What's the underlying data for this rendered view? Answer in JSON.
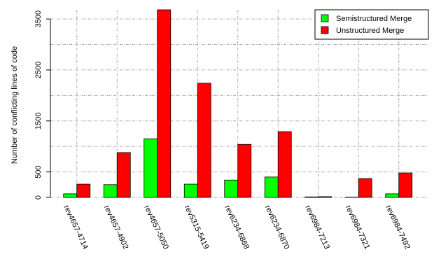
{
  "chart_data": {
    "type": "bar",
    "ylabel": "Number of conflicting lines of code",
    "categories": [
      "rev4657-4714",
      "rev4657-4902",
      "rev4657-5050",
      "rev5315-5419",
      "rev6234-6868",
      "rev6234-6870",
      "rev6984-7213",
      "rev6984-7321",
      "rev6984-7492"
    ],
    "series": [
      {
        "name": "Semistructured Merge",
        "color": "#00ff00",
        "values": [
          70,
          250,
          1150,
          260,
          340,
          400,
          10,
          5,
          70
        ]
      },
      {
        "name": "Unstructured Merge",
        "color": "#ff0000",
        "values": [
          260,
          880,
          3680,
          2240,
          1040,
          1290,
          15,
          370,
          480
        ]
      }
    ],
    "ylim": [
      0,
      3680
    ],
    "yticks": [
      0,
      500,
      1500,
      2500,
      3500
    ],
    "minor_yticks": [
      1000,
      2000,
      3000
    ],
    "grid": true,
    "legend": "top-right"
  }
}
